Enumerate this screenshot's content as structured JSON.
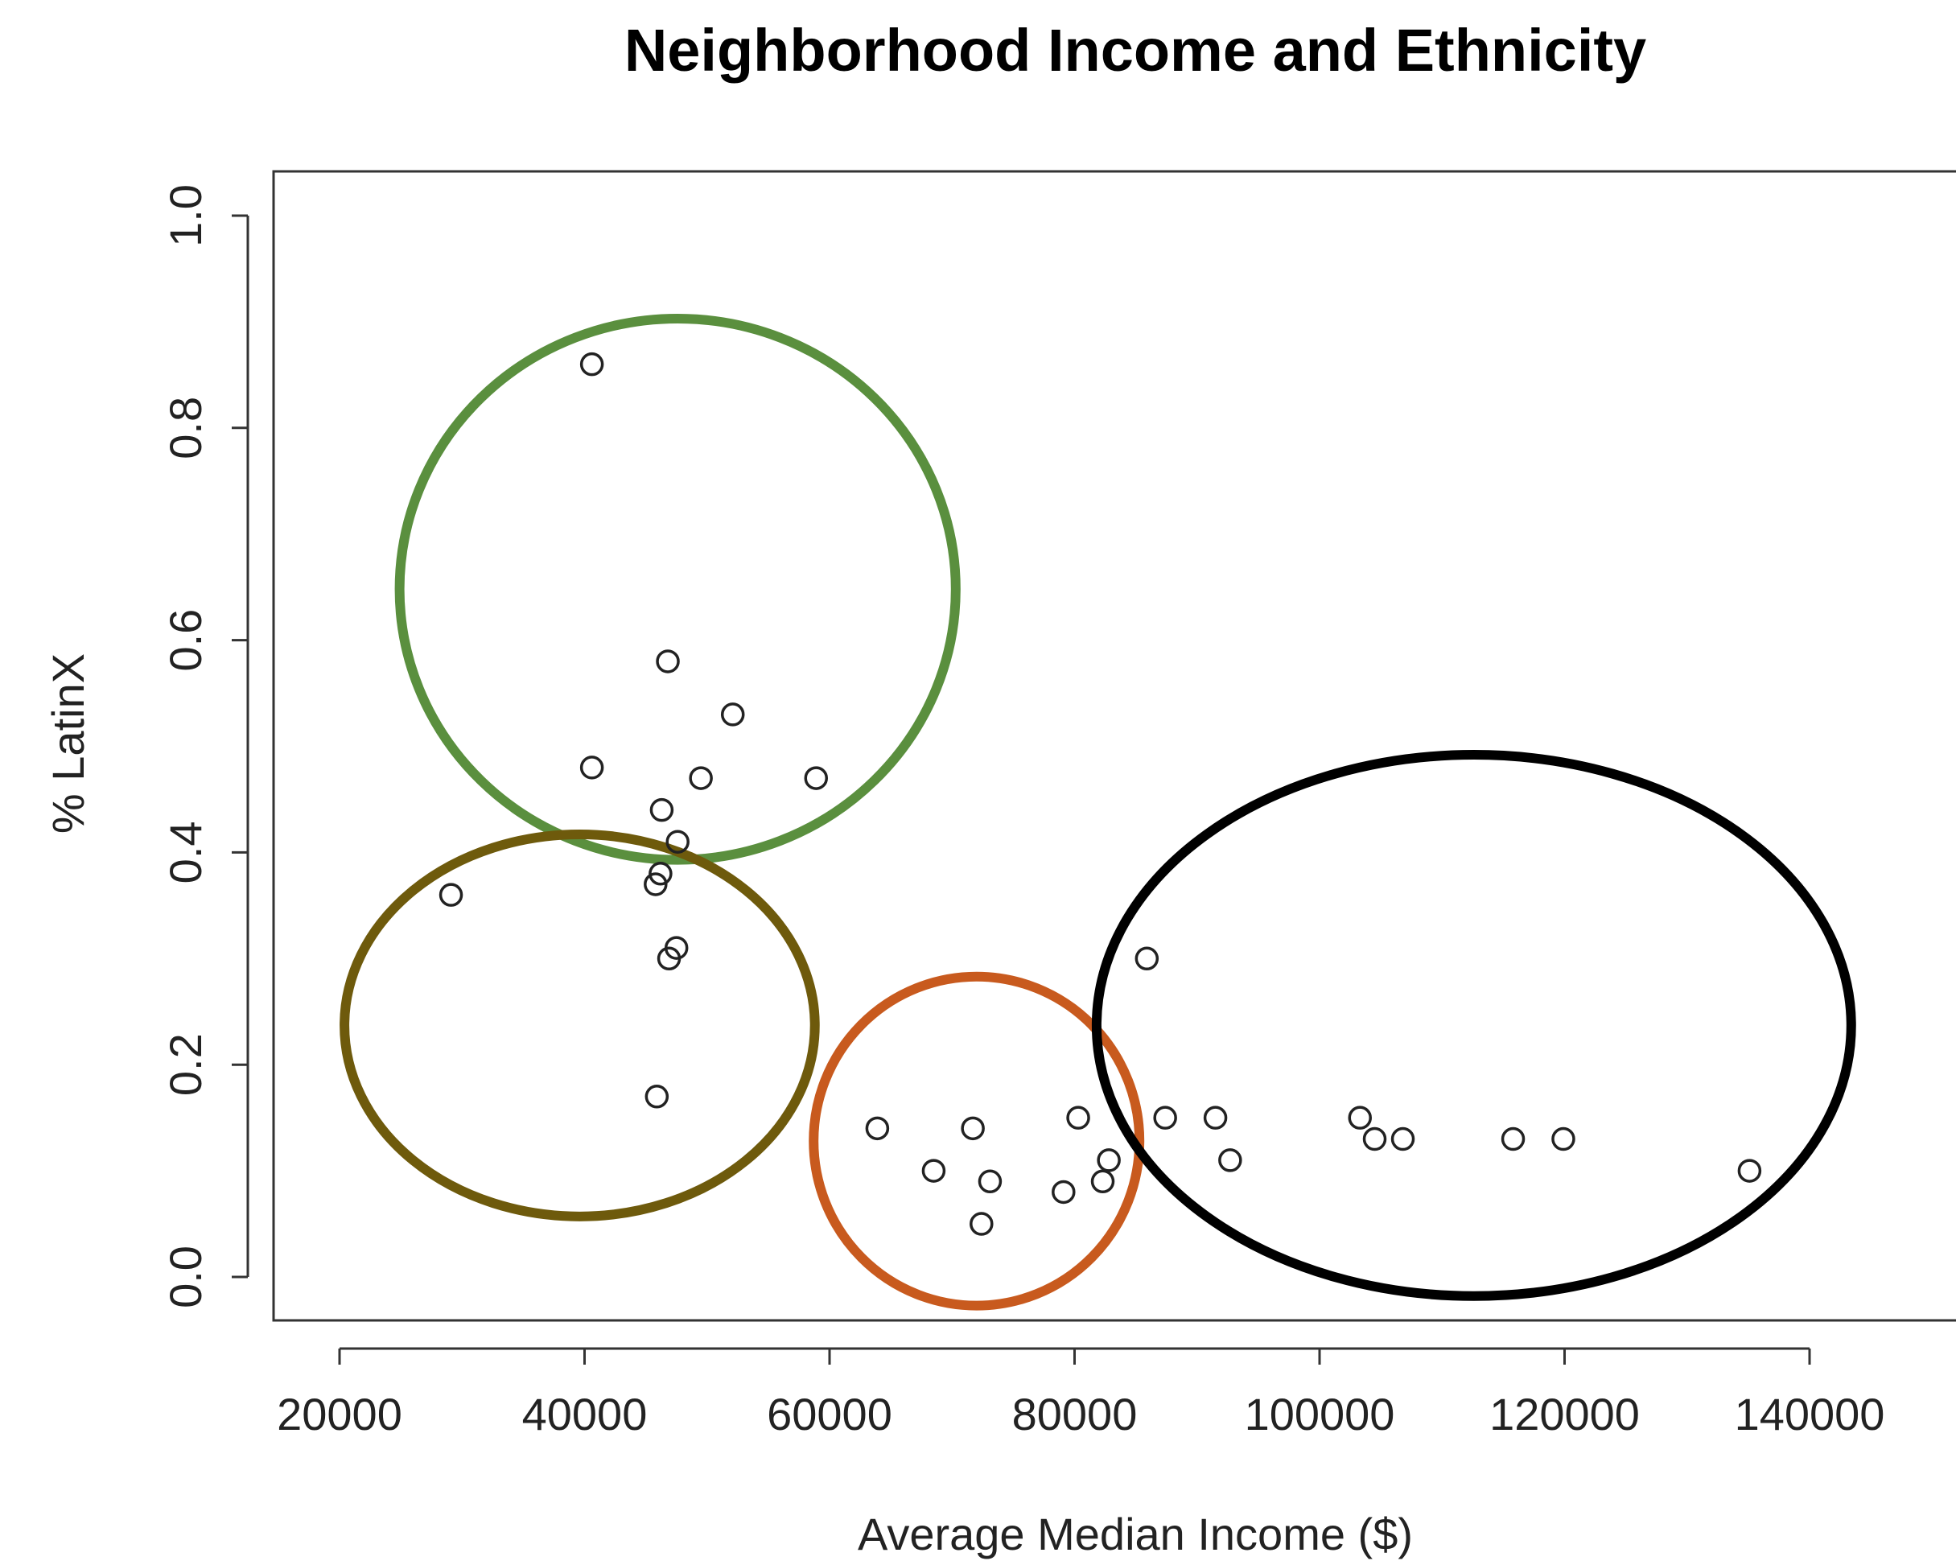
{
  "chart_data": {
    "type": "scatter",
    "title": "Neighborhood Income and Ethnicity",
    "xlabel": "Average Median Income ($)",
    "ylabel": "% LatinX",
    "xlim": [
      15000,
      150000
    ],
    "ylim": [
      0,
      1.0
    ],
    "x_ticks": [
      20000,
      40000,
      60000,
      80000,
      100000,
      120000,
      140000
    ],
    "x_tick_labels": [
      "20000",
      "40000",
      "60000",
      "80000",
      "100000",
      "120000",
      "140000"
    ],
    "y_ticks": [
      0.0,
      0.2,
      0.4,
      0.6,
      0.8,
      1.0
    ],
    "y_tick_labels": [
      "0.0",
      "0.2",
      "0.4",
      "0.6",
      "0.8",
      "1.0"
    ],
    "grid": false,
    "points": [
      {
        "x": 40600,
        "y": 0.86
      },
      {
        "x": 46800,
        "y": 0.58
      },
      {
        "x": 52100,
        "y": 0.53
      },
      {
        "x": 40600,
        "y": 0.48
      },
      {
        "x": 49500,
        "y": 0.47
      },
      {
        "x": 58900,
        "y": 0.47
      },
      {
        "x": 46300,
        "y": 0.44
      },
      {
        "x": 47600,
        "y": 0.41
      },
      {
        "x": 46200,
        "y": 0.38
      },
      {
        "x": 45800,
        "y": 0.37
      },
      {
        "x": 29100,
        "y": 0.36
      },
      {
        "x": 47500,
        "y": 0.31
      },
      {
        "x": 46900,
        "y": 0.3
      },
      {
        "x": 85900,
        "y": 0.3
      },
      {
        "x": 45900,
        "y": 0.17
      },
      {
        "x": 63900,
        "y": 0.14
      },
      {
        "x": 71700,
        "y": 0.14
      },
      {
        "x": 80300,
        "y": 0.15
      },
      {
        "x": 87400,
        "y": 0.15
      },
      {
        "x": 91500,
        "y": 0.15
      },
      {
        "x": 103300,
        "y": 0.15
      },
      {
        "x": 104500,
        "y": 0.13
      },
      {
        "x": 106800,
        "y": 0.13
      },
      {
        "x": 115800,
        "y": 0.13
      },
      {
        "x": 119900,
        "y": 0.13
      },
      {
        "x": 82800,
        "y": 0.11
      },
      {
        "x": 92700,
        "y": 0.11
      },
      {
        "x": 68500,
        "y": 0.1
      },
      {
        "x": 135100,
        "y": 0.1
      },
      {
        "x": 73100,
        "y": 0.09
      },
      {
        "x": 82300,
        "y": 0.09
      },
      {
        "x": 79100,
        "y": 0.08
      },
      {
        "x": 72400,
        "y": 0.05
      }
    ],
    "annotations": [
      {
        "shape": "ellipse",
        "color": "#5a8f3e",
        "cx": 47600,
        "cy": 0.648,
        "rx": 22700,
        "ry": 0.255
      },
      {
        "shape": "ellipse",
        "color": "#6e5a0c",
        "cx": 39600,
        "cy": 0.237,
        "rx": 19200,
        "ry": 0.18
      },
      {
        "shape": "ellipse",
        "color": "#c85a1e",
        "cx": 72000,
        "cy": 0.128,
        "rx": 13300,
        "ry": 0.155
      },
      {
        "shape": "ellipse",
        "color": "#000000",
        "cx": 112600,
        "cy": 0.237,
        "rx": 30800,
        "ry": 0.255
      }
    ]
  }
}
